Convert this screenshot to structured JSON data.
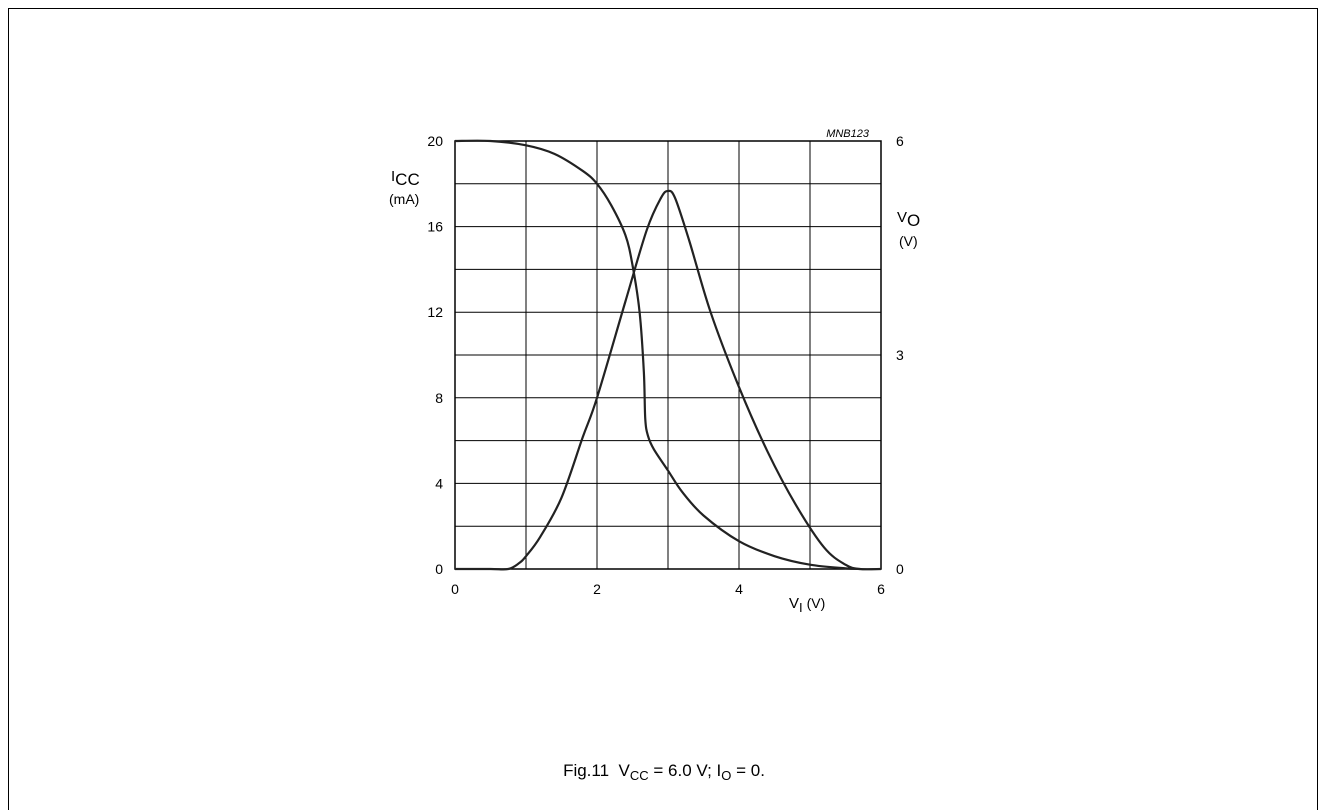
{
  "chart_data": {
    "type": "line",
    "figure_code": "MNB123",
    "x": {
      "label_main": "V",
      "label_sub": "I",
      "label_unit": "(V)",
      "range": [
        0,
        6
      ],
      "ticks": [
        0,
        2,
        4,
        6
      ],
      "grid_step": 1
    },
    "y_left": {
      "label_main": "I",
      "label_sub": "CC",
      "label_unit": "(mA)",
      "range": [
        0,
        20
      ],
      "ticks": [
        0,
        4,
        8,
        12,
        16,
        20
      ],
      "grid_step": 2
    },
    "y_right": {
      "label_main": "V",
      "label_sub": "O",
      "label_unit": "(V)",
      "range": [
        0,
        6
      ],
      "ticks": [
        0,
        3,
        6
      ]
    },
    "grid": true,
    "series": [
      {
        "axis": "left",
        "x": [
          0,
          0.5,
          1.0,
          1.4,
          1.8,
          2.0,
          2.2,
          2.4,
          2.5,
          2.6,
          2.66,
          2.68,
          2.72,
          2.8,
          3.0,
          3.2,
          3.5,
          4.0,
          4.5,
          5.0,
          5.5,
          5.7
        ],
        "y": [
          20,
          20,
          19.8,
          19.4,
          18.6,
          18.0,
          17.0,
          15.6,
          14.2,
          12.0,
          9.2,
          7.0,
          6.2,
          5.6,
          4.6,
          3.6,
          2.5,
          1.3,
          0.6,
          0.2,
          0.03,
          0
        ]
      },
      {
        "axis": "right",
        "x": [
          0,
          0.5,
          0.75,
          0.9,
          1.0,
          1.2,
          1.5,
          1.8,
          2.0,
          2.4,
          2.7,
          2.9,
          3.0,
          3.1,
          3.3,
          3.6,
          4.0,
          4.4,
          4.8,
          5.2,
          5.5,
          5.7,
          6.0
        ],
        "y": [
          0,
          0,
          0,
          0.08,
          0.18,
          0.45,
          1.0,
          1.85,
          2.4,
          3.75,
          4.75,
          5.2,
          5.3,
          5.2,
          4.6,
          3.6,
          2.55,
          1.65,
          0.9,
          0.3,
          0.06,
          0,
          0
        ]
      }
    ]
  },
  "caption": {
    "fig": "Fig.11",
    "vcc_main": "V",
    "vcc_sub": "CC",
    "vcc_rest": " = 6.0 V; I",
    "io_sub": "O",
    "io_rest": " = 0."
  }
}
